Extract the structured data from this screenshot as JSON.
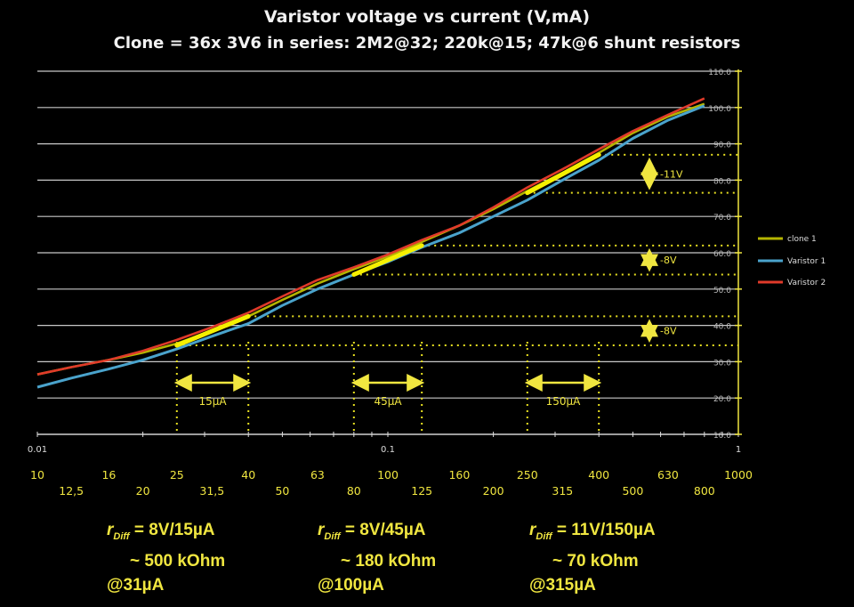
{
  "chart_data": {
    "type": "line",
    "title": "Varistor voltage vs current (V,mA)",
    "subtitle": "Clone = 36x 3V6 in series: 2M2@32; 220k@15; 47k@6 shunt resistors",
    "x_scale": "log",
    "xlim": [
      0.01,
      1
    ],
    "ylim": [
      10,
      110
    ],
    "grid": true,
    "legend_position": "right",
    "x_ticks_top": [
      "0.01",
      "0.1",
      "1"
    ],
    "y_ticks": [
      "10.0",
      "20.0",
      "30.0",
      "40.0",
      "50.0",
      "60.0",
      "70.0",
      "80.0",
      "90.0",
      "100.0",
      "110.0"
    ],
    "ua_ticks_row1": [
      "10",
      "16",
      "25",
      "40",
      "63",
      "100",
      "160",
      "250",
      "400",
      "630",
      "1000"
    ],
    "ua_ticks_row2": [
      "12,5",
      "20",
      "31,5",
      "50",
      "80",
      "125",
      "200",
      "315",
      "500",
      "800"
    ],
    "series": [
      {
        "name": "clone 1",
        "color": "#b4b400",
        "x": [
          0.01,
          0.0125,
          0.016,
          0.02,
          0.025,
          0.0315,
          0.04,
          0.05,
          0.063,
          0.08,
          0.1,
          0.125,
          0.16,
          0.2,
          0.25,
          0.315,
          0.4,
          0.5,
          0.63,
          0.8
        ],
        "y": [
          26.5,
          28.5,
          30.5,
          32.5,
          35,
          38.5,
          42.5,
          47,
          51.5,
          55.5,
          59,
          63,
          67.5,
          72,
          77,
          82,
          87.5,
          93,
          97.5,
          101
        ]
      },
      {
        "name": "Varistor 1",
        "color": "#4aa3cc",
        "x": [
          0.01,
          0.0125,
          0.016,
          0.02,
          0.025,
          0.0315,
          0.04,
          0.05,
          0.063,
          0.08,
          0.1,
          0.125,
          0.16,
          0.2,
          0.25,
          0.315,
          0.4,
          0.5,
          0.63,
          0.8
        ],
        "y": [
          23,
          25.5,
          28,
          30.5,
          33.5,
          37,
          40.5,
          45.5,
          50,
          54,
          57.5,
          61.5,
          65.5,
          70,
          74.5,
          80,
          85.5,
          91.5,
          96.5,
          100.5
        ]
      },
      {
        "name": "Varistor 2",
        "color": "#e03a2a",
        "x": [
          0.01,
          0.0125,
          0.016,
          0.02,
          0.025,
          0.0315,
          0.04,
          0.05,
          0.063,
          0.08,
          0.1,
          0.125,
          0.16,
          0.2,
          0.25,
          0.315,
          0.4,
          0.5,
          0.63,
          0.8
        ],
        "y": [
          26.5,
          28.5,
          30.5,
          33,
          36,
          39.5,
          43.5,
          48,
          52.5,
          56,
          59.5,
          63.5,
          67.5,
          72.5,
          78,
          83,
          88.5,
          93.5,
          98,
          102.5
        ]
      }
    ],
    "highlights": [
      {
        "x": [
          0.025,
          0.04
        ],
        "y": [
          34.5,
          42.5
        ]
      },
      {
        "x": [
          0.08,
          0.125
        ],
        "y": [
          54,
          62
        ]
      },
      {
        "x": [
          0.25,
          0.4
        ],
        "y": [
          76.5,
          87
        ]
      }
    ],
    "annotations": {
      "current_spans": [
        {
          "x": [
            0.025,
            0.04
          ],
          "label": "15µA"
        },
        {
          "x": [
            0.08,
            0.125
          ],
          "label": "45µA"
        },
        {
          "x": [
            0.25,
            0.4
          ],
          "label": "150µA"
        }
      ],
      "voltage_spans": [
        {
          "y": [
            34.5,
            42.5
          ],
          "label": "-8V"
        },
        {
          "y": [
            54,
            62
          ],
          "label": "-8V"
        },
        {
          "y": [
            76.5,
            87
          ],
          "label": "-11V"
        }
      ]
    }
  },
  "notes": [
    {
      "rdiff": "r",
      "sub": "Diff",
      "eq": " = 8V/15µA",
      "line2": "~ 500 kOhm",
      "line3": "@31µA"
    },
    {
      "rdiff": "r",
      "sub": "Diff",
      "eq": " = 8V/45µA",
      "line2": "~ 180 kOhm",
      "line3": "@100µA"
    },
    {
      "rdiff": "r",
      "sub": "Diff",
      "eq": " = 11V/150µA",
      "line2": "~ 70 kOhm",
      "line3": "@315µA"
    }
  ]
}
